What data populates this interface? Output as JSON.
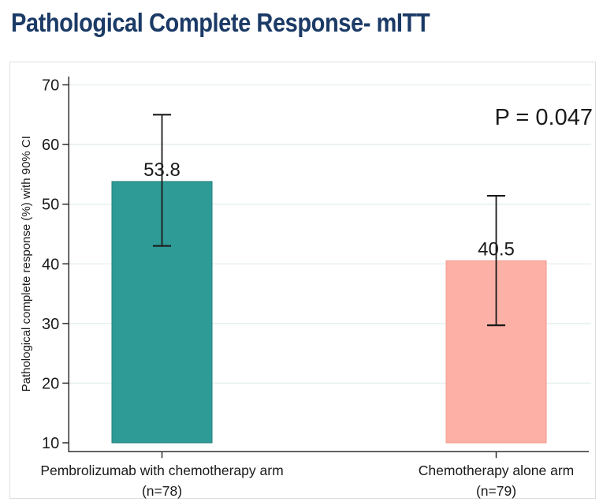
{
  "page_title": "Pathological Complete Response- mITT",
  "chart_data": {
    "type": "bar",
    "title": "Pathological Complete Response- mITT",
    "xlabel": "",
    "ylabel": "Pathological complete response (%) with 90% CI",
    "ylim": [
      10,
      70
    ],
    "yticks": [
      10,
      20,
      30,
      40,
      50,
      60,
      70
    ],
    "grid": true,
    "legend_position": "none",
    "categories": [
      "Pembrolizumab with chemotherapy arm",
      "Chemotherapy alone arm"
    ],
    "category_sublabels": [
      "(n=78)",
      "(n=79)"
    ],
    "series": [
      {
        "name": "Pathological complete response (%) with 90% CI",
        "values": [
          53.8,
          40.5
        ],
        "ci_low": [
          43.0,
          29.7
        ],
        "ci_high": [
          65.0,
          51.4
        ]
      }
    ],
    "value_labels": [
      "53.8",
      "40.5"
    ],
    "bar_colors": [
      "#2f9b97",
      "#fdb0a5"
    ],
    "bar_border_colors": [
      "#217f7c",
      "#f49a8b"
    ],
    "annotations": [
      {
        "text": "P = 0.047",
        "position": "top-right"
      }
    ],
    "error_bar_color": "#1a1a1a",
    "gridline_color": "#e8f1f0",
    "axis_color": "#2f2f2f",
    "tick_label_color": "#1a1a1a",
    "title_color": "#1b3a66"
  }
}
